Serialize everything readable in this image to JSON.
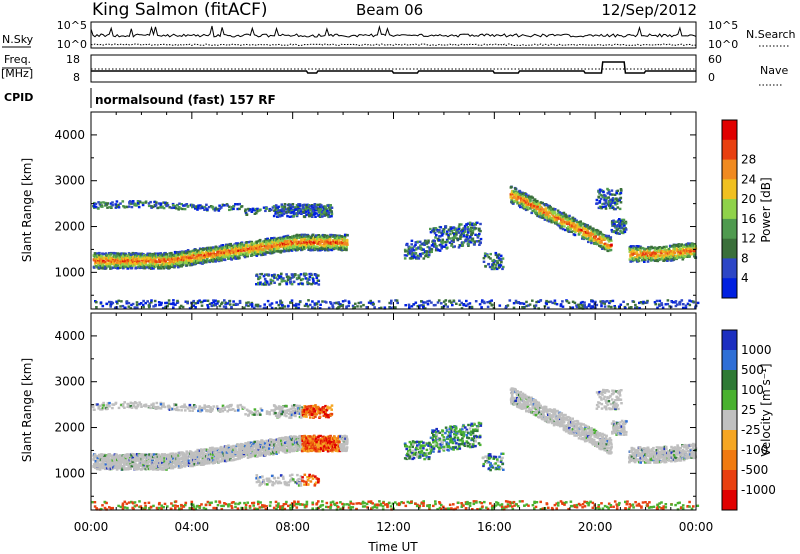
{
  "header": {
    "station": "King Salmon (fitACF)",
    "beam": "Beam 06",
    "date": "12/Sep/2012"
  },
  "strip_labels": {
    "nsky": "N.Sky",
    "nsearch": "N.Search",
    "freq": "Freq.",
    "freq_unit": "[MHz]",
    "nave": "Nave",
    "cpid": "CPID",
    "cpid_text": "normalsound (fast) 157 RF",
    "nsky_ticks": [
      "10^5",
      "10^0"
    ],
    "nsearch_ticks": [
      "10^5",
      "10^0"
    ],
    "freq_ticks": [
      "18",
      "8"
    ],
    "nave_ticks": [
      "60",
      "0"
    ]
  },
  "colors": {
    "power": [
      "#0020e0",
      "#2d46c6",
      "#3a6f3a",
      "#4f9a4f",
      "#8fd24a",
      "#f0c020",
      "#f08a20",
      "#e84010",
      "#e00000"
    ],
    "velocity": [
      "#1c2fc0",
      "#2f6fd6",
      "#2f7a35",
      "#49b12f",
      "#c0c0c0",
      "#f5a623",
      "#f07a10",
      "#e84010",
      "#e00000"
    ],
    "ground": "#bfbfbf"
  },
  "chart_data": [
    {
      "type": "heatmap",
      "name": "power",
      "xlabel": "",
      "ylabel": "Slant Range [km]",
      "xlim": [
        0,
        24
      ],
      "ylim": [
        200,
        4500
      ],
      "y_ticks": [
        "1000",
        "2000",
        "3000",
        "4000"
      ],
      "colorbar": {
        "label": "Power [dB]",
        "ticks": [
          "4",
          "8",
          "12",
          "16",
          "20",
          "24",
          "28"
        ]
      }
    },
    {
      "type": "heatmap",
      "name": "velocity",
      "xlabel": "Time UT",
      "ylabel": "Slant Range [km]",
      "xlim": [
        0,
        24
      ],
      "ylim": [
        200,
        4500
      ],
      "x_ticks": [
        "00:00",
        "04:00",
        "08:00",
        "12:00",
        "16:00",
        "20:00",
        "00:00"
      ],
      "y_ticks": [
        "1000",
        "2000",
        "3000",
        "4000"
      ],
      "colorbar": {
        "label": "Velocity [m s⁻¹]",
        "ticks": [
          "1000",
          "500",
          "100",
          "25",
          "-25",
          "-100",
          "-500",
          "-1000"
        ]
      }
    }
  ]
}
